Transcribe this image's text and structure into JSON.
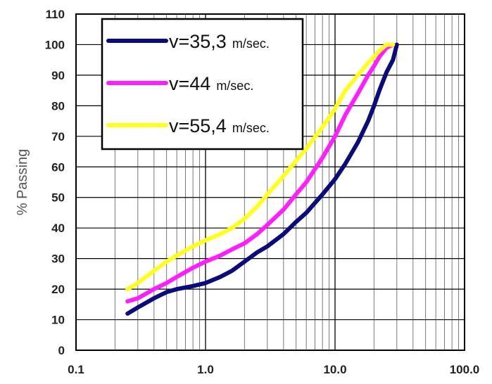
{
  "chart_data": {
    "type": "line",
    "x_scale": "log",
    "xlim": [
      0.1,
      100
    ],
    "ylim": [
      0,
      110
    ],
    "xticks": [
      "0.1",
      "1.0",
      "10.0",
      "100.0"
    ],
    "yticks": [
      "0",
      "10",
      "20",
      "30",
      "40",
      "50",
      "60",
      "70",
      "80",
      "90",
      "100",
      "110"
    ],
    "ylabel": "% Passing",
    "xlabel": "",
    "grid": true,
    "legend_position": "top-left",
    "series": [
      {
        "name": "v=35,3",
        "unit": "m/sec.",
        "color": "#0a0a7a",
        "x": [
          0.25,
          0.3,
          0.4,
          0.5,
          0.6,
          0.8,
          1.0,
          1.3,
          1.6,
          2.0,
          2.5,
          3.0,
          4.0,
          5.0,
          6.0,
          8.0,
          10.0,
          12.0,
          15.0,
          18.0,
          20.0,
          22.0,
          25.0,
          28.0,
          30.0
        ],
        "y": [
          12,
          14,
          17,
          19,
          20,
          21,
          22,
          24,
          26,
          29,
          32,
          34,
          38,
          42,
          45,
          51,
          56,
          61,
          68,
          75,
          80,
          85,
          91,
          95,
          100
        ]
      },
      {
        "name": "v=44",
        "unit": "m/sec.",
        "color": "#ff20ff",
        "x": [
          0.25,
          0.3,
          0.4,
          0.5,
          0.6,
          0.8,
          1.0,
          1.3,
          1.6,
          2.0,
          2.5,
          3.0,
          4.0,
          5.0,
          6.0,
          8.0,
          10.0,
          12.0,
          15.0,
          18.0,
          20.0,
          22.0,
          25.0,
          28.0
        ],
        "y": [
          16,
          17,
          20,
          22,
          24,
          27,
          29,
          31,
          33,
          35,
          38,
          41,
          46,
          51,
          55,
          63,
          70,
          77,
          84,
          90,
          93,
          96,
          99,
          100
        ]
      },
      {
        "name": "v=55,4",
        "unit": "m/sec.",
        "color": "#ffff22",
        "x": [
          0.25,
          0.3,
          0.4,
          0.5,
          0.6,
          0.8,
          1.0,
          1.3,
          1.6,
          2.0,
          2.5,
          3.0,
          4.0,
          5.0,
          6.0,
          8.0,
          10.0,
          12.0,
          15.0,
          18.0,
          20.0,
          22.0,
          25.0,
          28.0
        ],
        "y": [
          20,
          22,
          26,
          29,
          31,
          34,
          36,
          38,
          40,
          43,
          47,
          51,
          57,
          62,
          66,
          73,
          79,
          85,
          90,
          94,
          96,
          98,
          100,
          100
        ]
      }
    ]
  }
}
